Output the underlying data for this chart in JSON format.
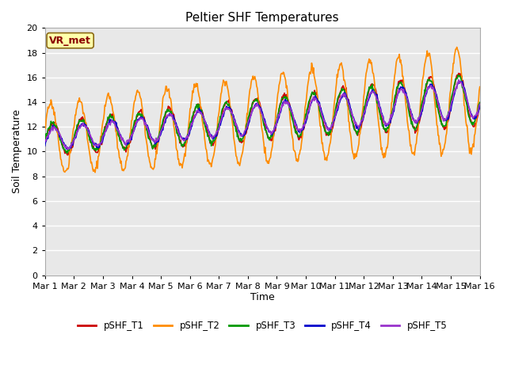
{
  "title": "Peltier SHF Temperatures",
  "xlabel": "Time",
  "ylabel": "Soil Temperature",
  "ylim": [
    0,
    20
  ],
  "xlim": [
    0,
    15
  ],
  "xtick_labels": [
    "Mar 1",
    "Mar 2",
    "Mar 3",
    "Mar 4",
    "Mar 5",
    "Mar 6",
    "Mar 7",
    "Mar 8",
    "Mar 9",
    "Mar 10",
    "Mar 11",
    "Mar 12",
    "Mar 13",
    "Mar 14",
    "Mar 15",
    "Mar 16"
  ],
  "ytick_values": [
    0,
    2,
    4,
    6,
    8,
    10,
    12,
    14,
    16,
    18,
    20
  ],
  "series_colors": {
    "pSHF_T1": "#cc0000",
    "pSHF_T2": "#ff8c00",
    "pSHF_T3": "#009900",
    "pSHF_T4": "#0000cc",
    "pSHF_T5": "#9933cc"
  },
  "legend_labels": [
    "pSHF_T1",
    "pSHF_T2",
    "pSHF_T3",
    "pSHF_T4",
    "pSHF_T5"
  ],
  "annotation_text": "VR_met",
  "bg_color": "#e8e8e8",
  "fig_bg_color": "#ffffff",
  "title_fontsize": 11,
  "axis_label_fontsize": 9,
  "tick_fontsize": 8,
  "line_width": 1.2
}
